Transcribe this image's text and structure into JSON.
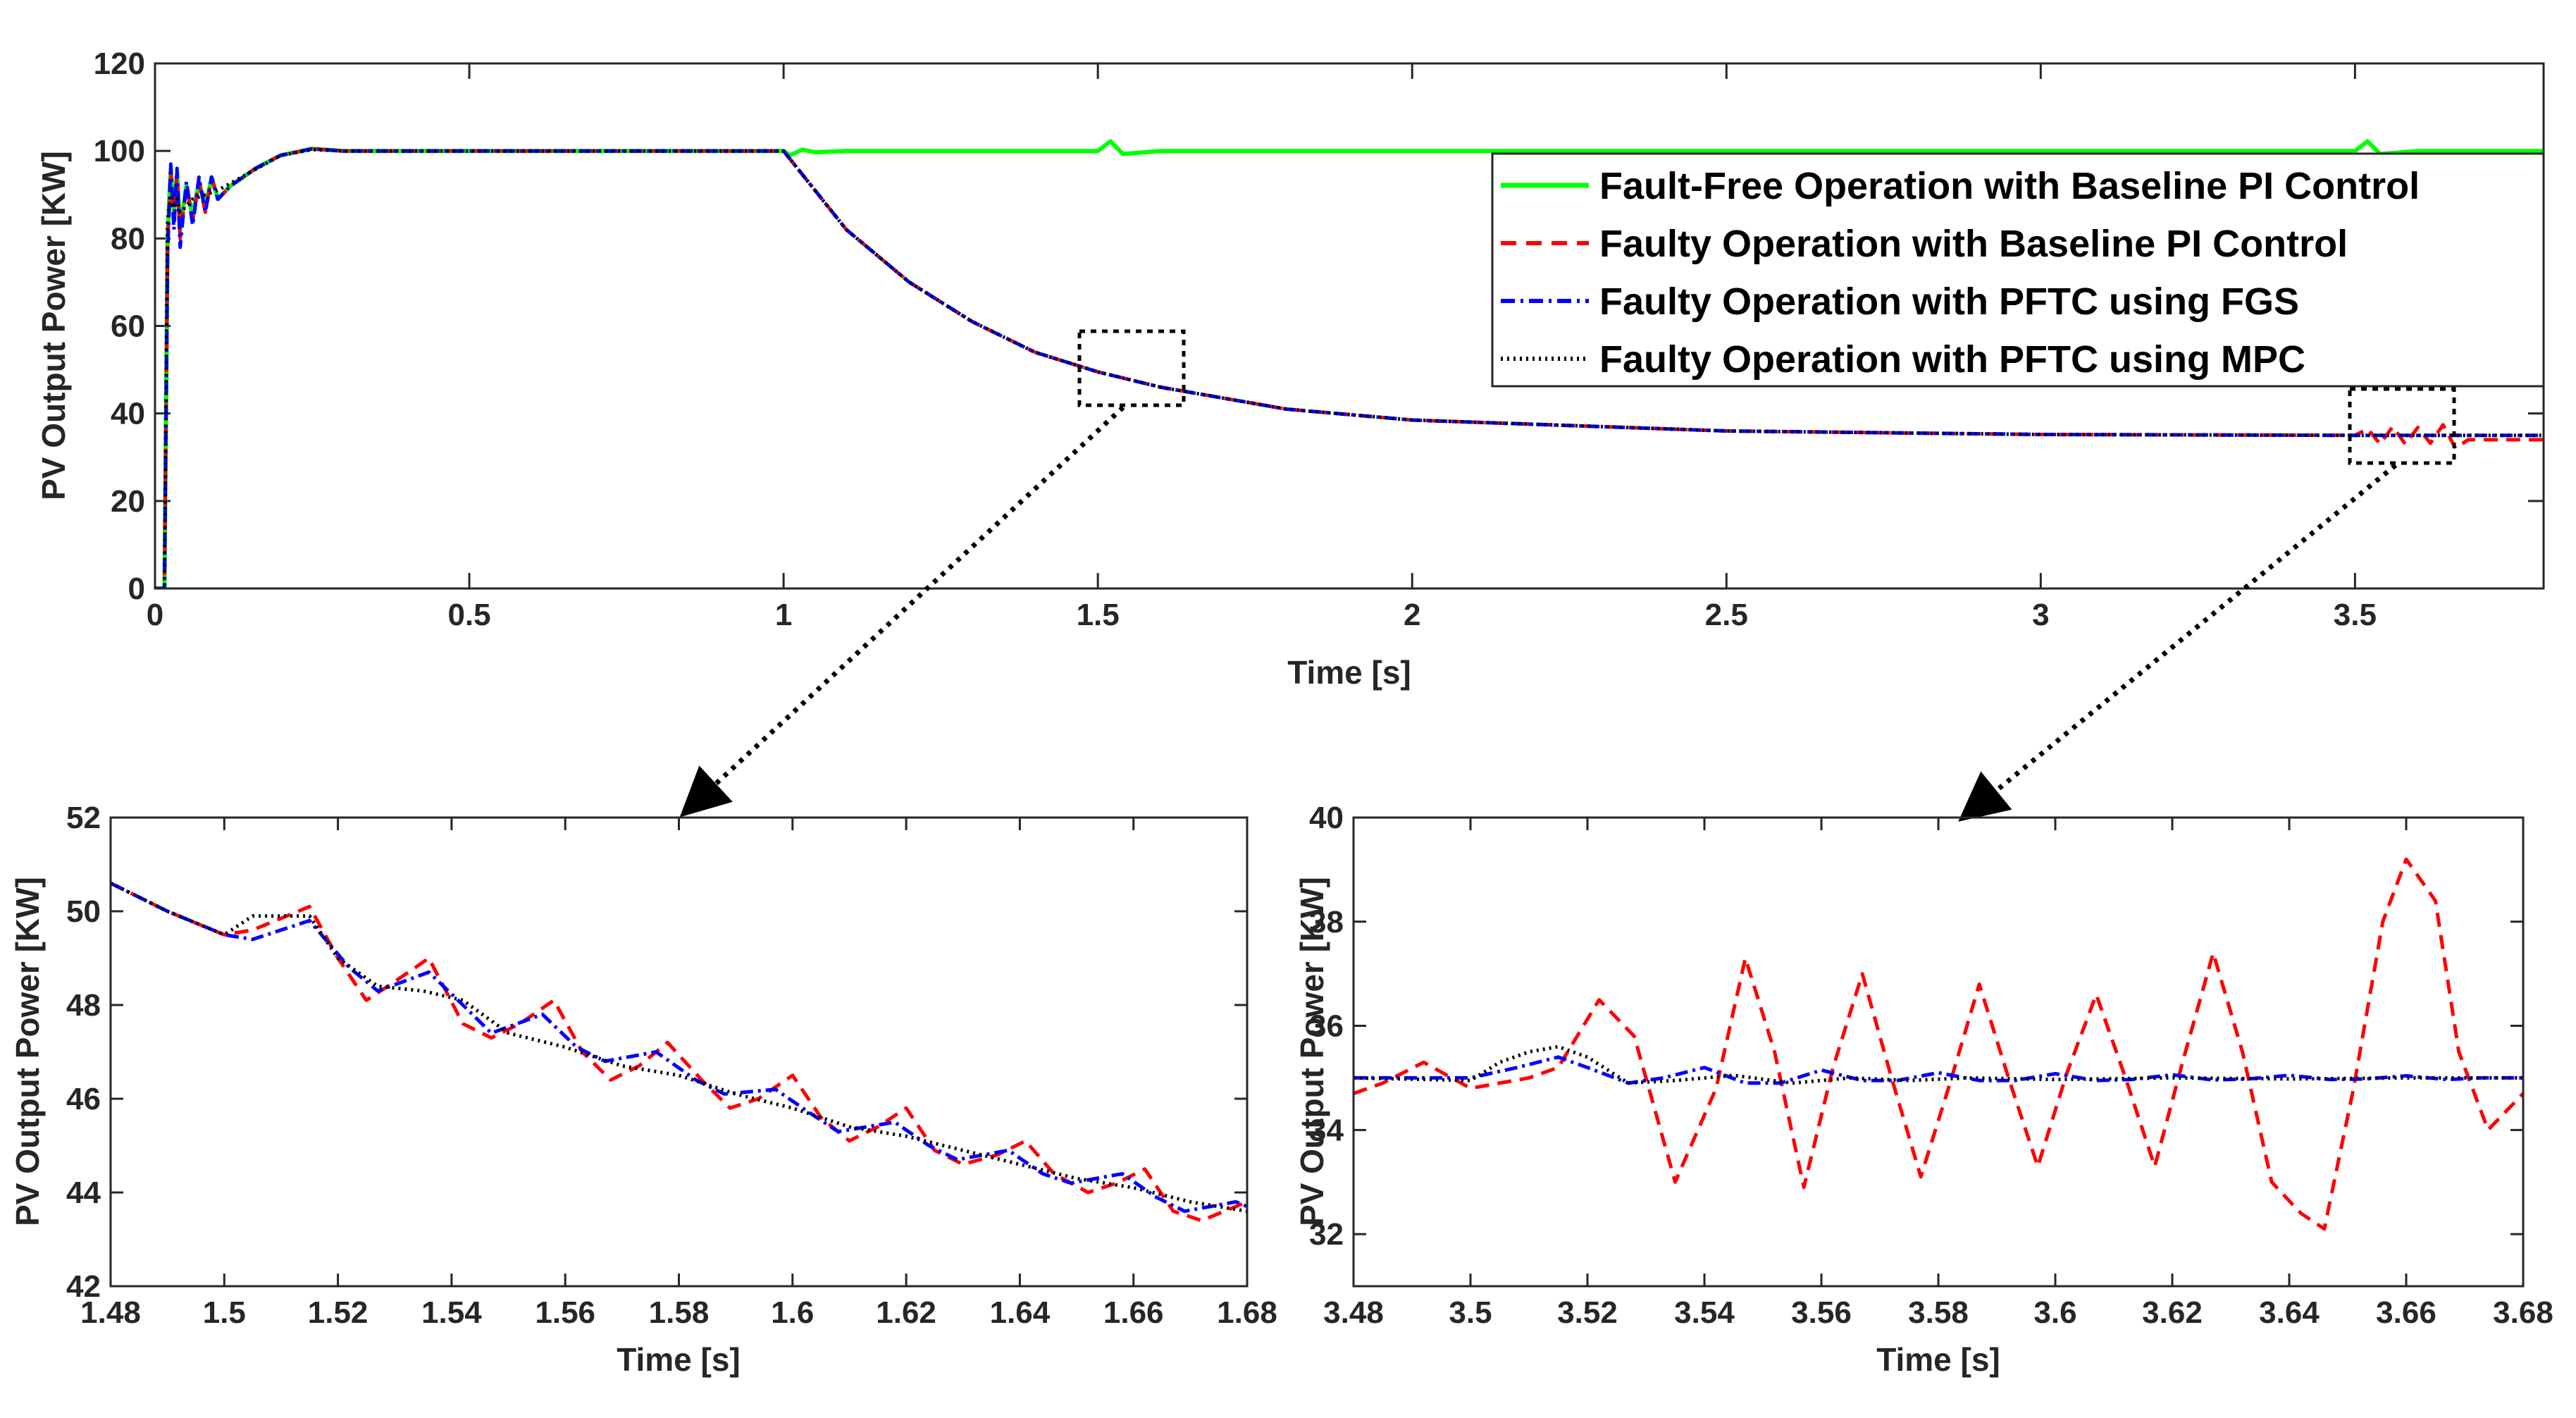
{
  "colors": {
    "fault_free": "#00ff00",
    "faulty_pi": "#ff0000",
    "pftc_fgs": "#0000ff",
    "pftc_mpc": "#000000"
  },
  "chart_data": [
    {
      "type": "line",
      "name": "main",
      "title": "",
      "xlabel": "Time [s]",
      "ylabel": "PV Output Power [KW]",
      "xlim": [
        0,
        3.8
      ],
      "ylim": [
        0,
        120
      ],
      "xticks": [
        "0",
        "0.5",
        "1",
        "1.5",
        "2",
        "2.5",
        "3",
        "3.5"
      ],
      "xtick_values": [
        0,
        0.5,
        1,
        1.5,
        2,
        2.5,
        3,
        3.5
      ],
      "yticks": [
        "0",
        "20",
        "40",
        "60",
        "80",
        "100",
        "120"
      ],
      "ytick_values": [
        0,
        20,
        40,
        60,
        80,
        100,
        120
      ],
      "legend_position": "top-right",
      "legend": [
        {
          "label": "Fault-Free Operation with Baseline PI Control",
          "series": "fault_free"
        },
        {
          "label": "Faulty Operation with Baseline PI Control",
          "series": "faulty_pi"
        },
        {
          "label": "Faulty Operation with PFTC using FGS",
          "series": "pftc_fgs"
        },
        {
          "label": "Faulty Operation with PFTC using MPC",
          "series": "pftc_mpc"
        }
      ],
      "series": [
        {
          "name": "fault_free",
          "x": [
            0,
            0.015,
            0.02,
            0.025,
            0.03,
            0.035,
            0.04,
            0.05,
            0.06,
            0.07,
            0.08,
            0.09,
            0.1,
            0.12,
            0.14,
            0.16,
            0.2,
            0.25,
            0.3,
            0.5,
            1.0,
            1.01,
            1.03,
            1.05,
            1.1,
            1.3,
            1.5,
            1.52,
            1.54,
            1.6,
            2.0,
            2.5,
            3.0,
            3.5,
            3.52,
            3.54,
            3.6,
            3.8
          ],
          "y": [
            0,
            0,
            80,
            96,
            86,
            95,
            82,
            92,
            85,
            93,
            87,
            94,
            89,
            92,
            94,
            96,
            99,
            100.5,
            100,
            100,
            100,
            99,
            100.3,
            99.7,
            100,
            100,
            100,
            102.2,
            99.3,
            100,
            100,
            100,
            100,
            100,
            102.2,
            99.3,
            100,
            100
          ]
        },
        {
          "name": "faulty_pi",
          "x": [
            0,
            0.015,
            0.02,
            0.025,
            0.03,
            0.035,
            0.04,
            0.05,
            0.06,
            0.07,
            0.08,
            0.09,
            0.1,
            0.12,
            0.14,
            0.16,
            0.2,
            0.25,
            0.3,
            0.5,
            1.0,
            1.1,
            1.2,
            1.3,
            1.4,
            1.5,
            1.6,
            1.8,
            2.0,
            2.5,
            3.0,
            3.5,
            3.52,
            3.54,
            3.56,
            3.58,
            3.6,
            3.62,
            3.64,
            3.66,
            3.68,
            3.8
          ],
          "y": [
            0,
            0,
            78,
            96,
            84,
            95,
            80,
            92,
            84,
            93,
            86,
            94,
            89,
            92,
            94,
            96,
            99,
            100.5,
            100,
            100,
            100,
            82,
            70,
            61,
            54,
            49.5,
            46,
            41,
            38.5,
            36,
            35.2,
            35,
            36.5,
            33,
            37,
            33,
            36.8,
            33.2,
            37.4,
            32,
            34,
            34
          ]
        },
        {
          "name": "pftc_fgs",
          "x": [
            0,
            0.015,
            0.02,
            0.025,
            0.03,
            0.035,
            0.04,
            0.05,
            0.06,
            0.07,
            0.08,
            0.09,
            0.1,
            0.12,
            0.14,
            0.16,
            0.2,
            0.25,
            0.3,
            0.5,
            1.0,
            1.1,
            1.2,
            1.3,
            1.4,
            1.5,
            1.6,
            1.8,
            2.0,
            2.5,
            3.0,
            3.5,
            3.8
          ],
          "y": [
            0,
            0,
            76,
            97,
            82,
            96,
            78,
            93,
            83,
            94,
            86,
            94,
            89,
            92,
            94,
            96,
            99,
            100.5,
            100,
            100,
            100,
            82,
            70,
            61,
            54,
            49.5,
            46,
            41,
            38.5,
            36,
            35.2,
            35,
            35
          ]
        },
        {
          "name": "pftc_mpc",
          "x": [
            0,
            0.015,
            0.02,
            0.025,
            0.03,
            0.035,
            0.04,
            0.06,
            0.08,
            0.1,
            0.15,
            0.2,
            0.25,
            0.3,
            0.5,
            1.0,
            1.1,
            1.2,
            1.3,
            1.4,
            1.5,
            1.6,
            1.8,
            2.0,
            2.5,
            3.0,
            3.5,
            3.8
          ],
          "y": [
            0,
            0,
            84,
            90,
            87,
            89,
            86,
            89,
            90,
            91,
            95,
            99,
            100.3,
            100,
            100,
            100,
            82,
            70,
            61,
            54,
            49.5,
            46,
            41,
            38.5,
            36,
            35.2,
            35,
            35
          ]
        }
      ],
      "zoom_boxes": [
        {
          "xrange": [
            1.48,
            1.65
          ],
          "yrange": [
            42,
            59
          ]
        },
        {
          "xrange": [
            3.48,
            3.65
          ],
          "yrange": [
            29,
            46
          ]
        }
      ]
    },
    {
      "type": "line",
      "name": "zoom_left",
      "title": "",
      "xlabel": "Time [s]",
      "ylabel": "PV Output Power [KW]",
      "xlim": [
        1.48,
        1.68
      ],
      "ylim": [
        42,
        52
      ],
      "xticks": [
        "1.48",
        "1.5",
        "1.52",
        "1.54",
        "1.56",
        "1.58",
        "1.6",
        "1.62",
        "1.64",
        "1.66",
        "1.68"
      ],
      "xtick_values": [
        1.48,
        1.5,
        1.52,
        1.54,
        1.56,
        1.58,
        1.6,
        1.62,
        1.64,
        1.66,
        1.68
      ],
      "yticks": [
        "42",
        "44",
        "46",
        "48",
        "50",
        "52"
      ],
      "ytick_values": [
        42,
        44,
        46,
        48,
        50,
        52
      ],
      "series": [
        {
          "name": "faulty_pi",
          "x": [
            1.48,
            1.49,
            1.5,
            1.505,
            1.515,
            1.52,
            1.525,
            1.53,
            1.536,
            1.542,
            1.547,
            1.552,
            1.558,
            1.563,
            1.568,
            1.573,
            1.578,
            1.584,
            1.589,
            1.594,
            1.6,
            1.605,
            1.61,
            1.615,
            1.62,
            1.625,
            1.63,
            1.636,
            1.641,
            1.646,
            1.652,
            1.657,
            1.662,
            1.667,
            1.672,
            1.68
          ],
          "y": [
            50.6,
            50.0,
            49.5,
            49.6,
            50.1,
            49.0,
            48.1,
            48.5,
            49.0,
            47.6,
            47.3,
            47.6,
            48.1,
            47.0,
            46.4,
            46.7,
            47.2,
            46.4,
            45.8,
            46.0,
            46.5,
            45.6,
            45.1,
            45.4,
            45.8,
            44.9,
            44.6,
            44.8,
            45.1,
            44.4,
            44.0,
            44.2,
            44.5,
            43.6,
            43.4,
            43.8
          ]
        },
        {
          "name": "pftc_fgs",
          "x": [
            1.48,
            1.49,
            1.5,
            1.505,
            1.515,
            1.522,
            1.527,
            1.536,
            1.542,
            1.547,
            1.556,
            1.562,
            1.567,
            1.576,
            1.583,
            1.588,
            1.597,
            1.603,
            1.608,
            1.618,
            1.624,
            1.629,
            1.638,
            1.644,
            1.649,
            1.658,
            1.664,
            1.669,
            1.678,
            1.68
          ],
          "y": [
            50.6,
            50.0,
            49.5,
            49.4,
            49.8,
            48.8,
            48.3,
            48.7,
            48.0,
            47.4,
            47.8,
            47.1,
            46.8,
            47.0,
            46.4,
            46.1,
            46.2,
            45.7,
            45.3,
            45.5,
            45.0,
            44.7,
            44.9,
            44.4,
            44.2,
            44.4,
            43.9,
            43.6,
            43.8,
            43.7
          ]
        },
        {
          "name": "pftc_mpc",
          "x": [
            1.48,
            1.49,
            1.5,
            1.505,
            1.515,
            1.52,
            1.527,
            1.535,
            1.542,
            1.55,
            1.56,
            1.57,
            1.58,
            1.59,
            1.6,
            1.61,
            1.62,
            1.63,
            1.64,
            1.65,
            1.66,
            1.67,
            1.68
          ],
          "y": [
            50.6,
            50.0,
            49.5,
            49.9,
            49.9,
            49.0,
            48.4,
            48.3,
            48.1,
            47.4,
            47.1,
            46.7,
            46.5,
            46.1,
            45.8,
            45.4,
            45.2,
            44.9,
            44.6,
            44.3,
            44.1,
            43.8,
            43.6
          ]
        }
      ]
    },
    {
      "type": "line",
      "name": "zoom_right",
      "title": "",
      "xlabel": "Time [s]",
      "ylabel": "PV Output Power [KW]",
      "xlim": [
        3.48,
        3.68
      ],
      "ylim": [
        31,
        40
      ],
      "xticks": [
        "3.48",
        "3.5",
        "3.52",
        "3.54",
        "3.56",
        "3.58",
        "3.6",
        "3.62",
        "3.64",
        "3.66",
        "3.68"
      ],
      "xtick_values": [
        3.48,
        3.5,
        3.52,
        3.54,
        3.56,
        3.58,
        3.6,
        3.62,
        3.64,
        3.66,
        3.68
      ],
      "yticks": [
        "32",
        "34",
        "36",
        "38",
        "40"
      ],
      "ytick_values": [
        32,
        34,
        36,
        38,
        40
      ],
      "series": [
        {
          "name": "faulty_pi",
          "x": [
            3.48,
            3.485,
            3.492,
            3.5,
            3.51,
            3.515,
            3.522,
            3.528,
            3.535,
            3.542,
            3.547,
            3.552,
            3.557,
            3.562,
            3.567,
            3.572,
            3.577,
            3.582,
            3.587,
            3.592,
            3.597,
            3.602,
            3.607,
            3.612,
            3.617,
            3.622,
            3.627,
            3.632,
            3.637,
            3.642,
            3.646,
            3.651,
            3.656,
            3.66,
            3.665,
            3.669,
            3.674,
            3.68
          ],
          "y": [
            34.7,
            34.9,
            35.3,
            34.8,
            35.0,
            35.2,
            36.5,
            35.8,
            33.0,
            34.8,
            37.3,
            35.5,
            32.9,
            35.2,
            37.0,
            35.0,
            33.1,
            34.9,
            36.8,
            35.0,
            33.3,
            35.1,
            36.6,
            35.0,
            33.3,
            35.4,
            37.4,
            35.5,
            33.0,
            32.4,
            32.1,
            34.8,
            38.0,
            39.2,
            38.4,
            35.5,
            34.0,
            34.7
          ]
        },
        {
          "name": "pftc_fgs",
          "x": [
            3.48,
            3.5,
            3.508,
            3.515,
            3.52,
            3.527,
            3.533,
            3.54,
            3.547,
            3.553,
            3.56,
            3.567,
            3.573,
            3.58,
            3.587,
            3.593,
            3.6,
            3.607,
            3.613,
            3.62,
            3.627,
            3.633,
            3.64,
            3.647,
            3.653,
            3.66,
            3.667,
            3.673,
            3.68
          ],
          "y": [
            35.0,
            35.0,
            35.2,
            35.4,
            35.2,
            34.9,
            35.0,
            35.2,
            34.9,
            34.9,
            35.15,
            34.95,
            34.95,
            35.1,
            34.95,
            34.95,
            35.08,
            34.95,
            34.97,
            35.06,
            34.96,
            34.98,
            35.05,
            34.97,
            34.98,
            35.04,
            34.97,
            35.0,
            35.0
          ]
        },
        {
          "name": "pftc_mpc",
          "x": [
            3.48,
            3.5,
            3.505,
            3.51,
            3.515,
            3.52,
            3.527,
            3.535,
            3.545,
            3.555,
            3.565,
            3.575,
            3.585,
            3.6,
            3.62,
            3.64,
            3.66,
            3.68
          ],
          "y": [
            35.0,
            34.95,
            35.3,
            35.5,
            35.6,
            35.4,
            34.9,
            34.95,
            35.05,
            34.9,
            35.0,
            34.95,
            35.0,
            34.97,
            35.0,
            34.98,
            35.0,
            35.0
          ]
        }
      ]
    }
  ]
}
